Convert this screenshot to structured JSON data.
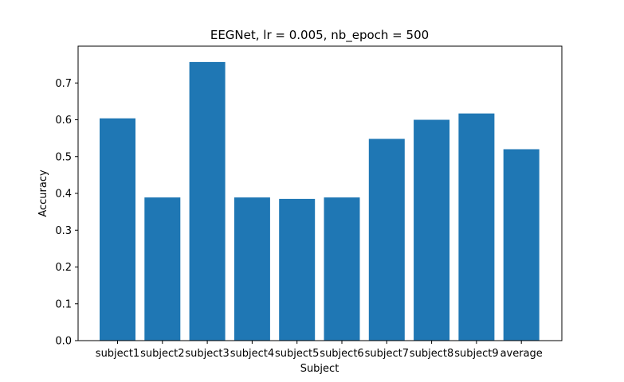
{
  "chart_data": {
    "type": "bar",
    "title": "EEGNet, lr = 0.005, nb_epoch = 500",
    "xlabel": "Subject",
    "ylabel": "Accuracy",
    "categories": [
      "subject1",
      "subject2",
      "subject3",
      "subject4",
      "subject5",
      "subject6",
      "subject7",
      "subject8",
      "subject9",
      "average"
    ],
    "values": [
      0.604,
      0.389,
      0.757,
      0.389,
      0.385,
      0.389,
      0.548,
      0.6,
      0.617,
      0.52
    ],
    "ylim": [
      0.0,
      0.8
    ],
    "yticks": [
      "0.0",
      "0.1",
      "0.2",
      "0.3",
      "0.4",
      "0.5",
      "0.6",
      "0.7"
    ],
    "grid": false,
    "bar_color": "#1f77b4"
  }
}
